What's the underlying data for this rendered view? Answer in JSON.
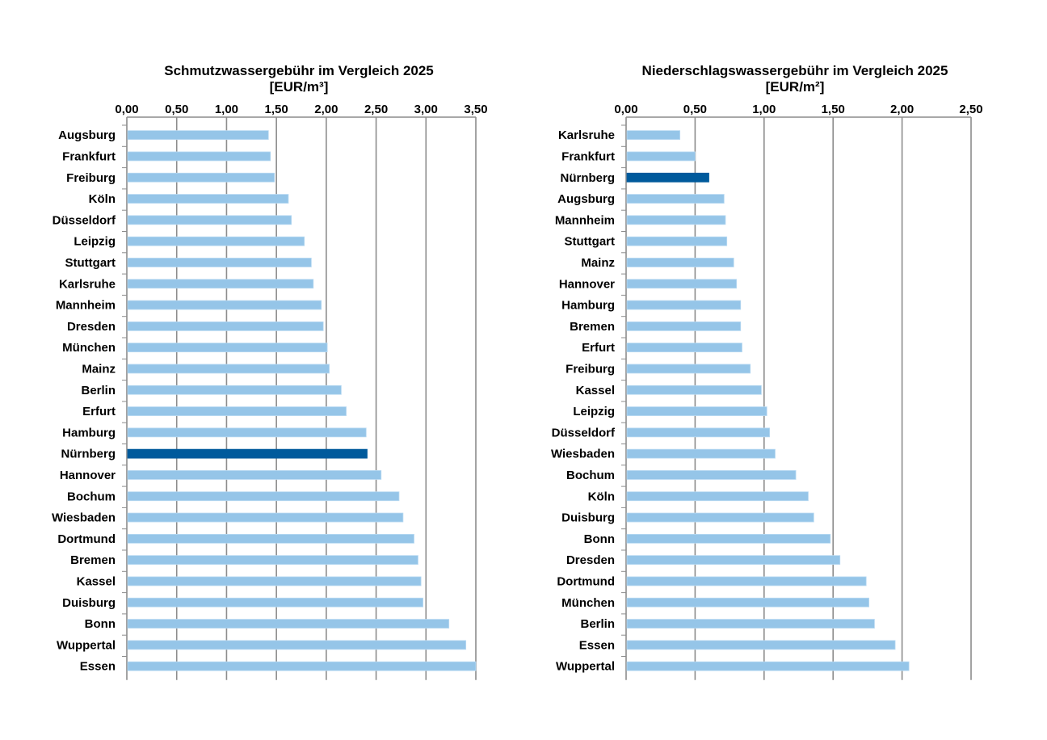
{
  "chart_data": [
    {
      "type": "bar",
      "orientation": "horizontal",
      "title": "Schmutzwassergebühr im Vergleich 2025",
      "subtitle": "[EUR/m³]",
      "xlim": [
        0,
        3.5
      ],
      "ticks": [
        "0,00",
        "0,50",
        "1,00",
        "1,50",
        "2,00",
        "2,50",
        "3,00",
        "3,50"
      ],
      "tick_values": [
        0,
        0.5,
        1,
        1.5,
        2,
        2.5,
        3,
        3.5
      ],
      "axis_position": "top",
      "grid": true,
      "highlight": "Nürnberg",
      "colors": {
        "bar": "#95c5e8",
        "highlight": "#005a9c",
        "grid": "#8c8c8c"
      },
      "categories": [
        "Augsburg",
        "Frankfurt",
        "Freiburg",
        "Köln",
        "Düsseldorf",
        "Leipzig",
        "Stuttgart",
        "Karlsruhe",
        "Mannheim",
        "Dresden",
        "München",
        "Mainz",
        "Berlin",
        "Erfurt",
        "Hamburg",
        "Nürnberg",
        "Hannover",
        "Bochum",
        "Wiesbaden",
        "Dortmund",
        "Bremen",
        "Kassel",
        "Duisburg",
        "Bonn",
        "Wuppertal",
        "Essen"
      ],
      "values": [
        1.42,
        1.44,
        1.48,
        1.62,
        1.65,
        1.78,
        1.85,
        1.87,
        1.95,
        1.97,
        2.01,
        2.03,
        2.15,
        2.2,
        2.4,
        2.41,
        2.55,
        2.73,
        2.77,
        2.88,
        2.92,
        2.95,
        2.97,
        3.23,
        3.4,
        3.5
      ]
    },
    {
      "type": "bar",
      "orientation": "horizontal",
      "title": "Niederschlagswassergebühr im Vergleich 2025",
      "subtitle": "[EUR/m²]",
      "xlim": [
        0,
        2.5
      ],
      "ticks": [
        "0,00",
        "0,50",
        "1,00",
        "1,50",
        "2,00",
        "2,50"
      ],
      "tick_values": [
        0,
        0.5,
        1,
        1.5,
        2,
        2.5
      ],
      "axis_position": "top",
      "grid": true,
      "highlight": "Nürnberg",
      "colors": {
        "bar": "#95c5e8",
        "highlight": "#005a9c",
        "grid": "#8c8c8c"
      },
      "categories": [
        "Karlsruhe",
        "Frankfurt",
        "Nürnberg",
        "Augsburg",
        "Mannheim",
        "Stuttgart",
        "Mainz",
        "Hannover",
        "Hamburg",
        "Bremen",
        "Erfurt",
        "Freiburg",
        "Kassel",
        "Leipzig",
        "Düsseldorf",
        "Wiesbaden",
        "Bochum",
        "Köln",
        "Duisburg",
        "Bonn",
        "Dresden",
        "Dortmund",
        "München",
        "Berlin",
        "Essen",
        "Wuppertal"
      ],
      "values": [
        0.39,
        0.5,
        0.6,
        0.71,
        0.72,
        0.73,
        0.78,
        0.8,
        0.83,
        0.83,
        0.84,
        0.9,
        0.98,
        1.02,
        1.04,
        1.08,
        1.23,
        1.32,
        1.36,
        1.48,
        1.55,
        1.74,
        1.76,
        1.8,
        1.95,
        2.05
      ]
    }
  ]
}
